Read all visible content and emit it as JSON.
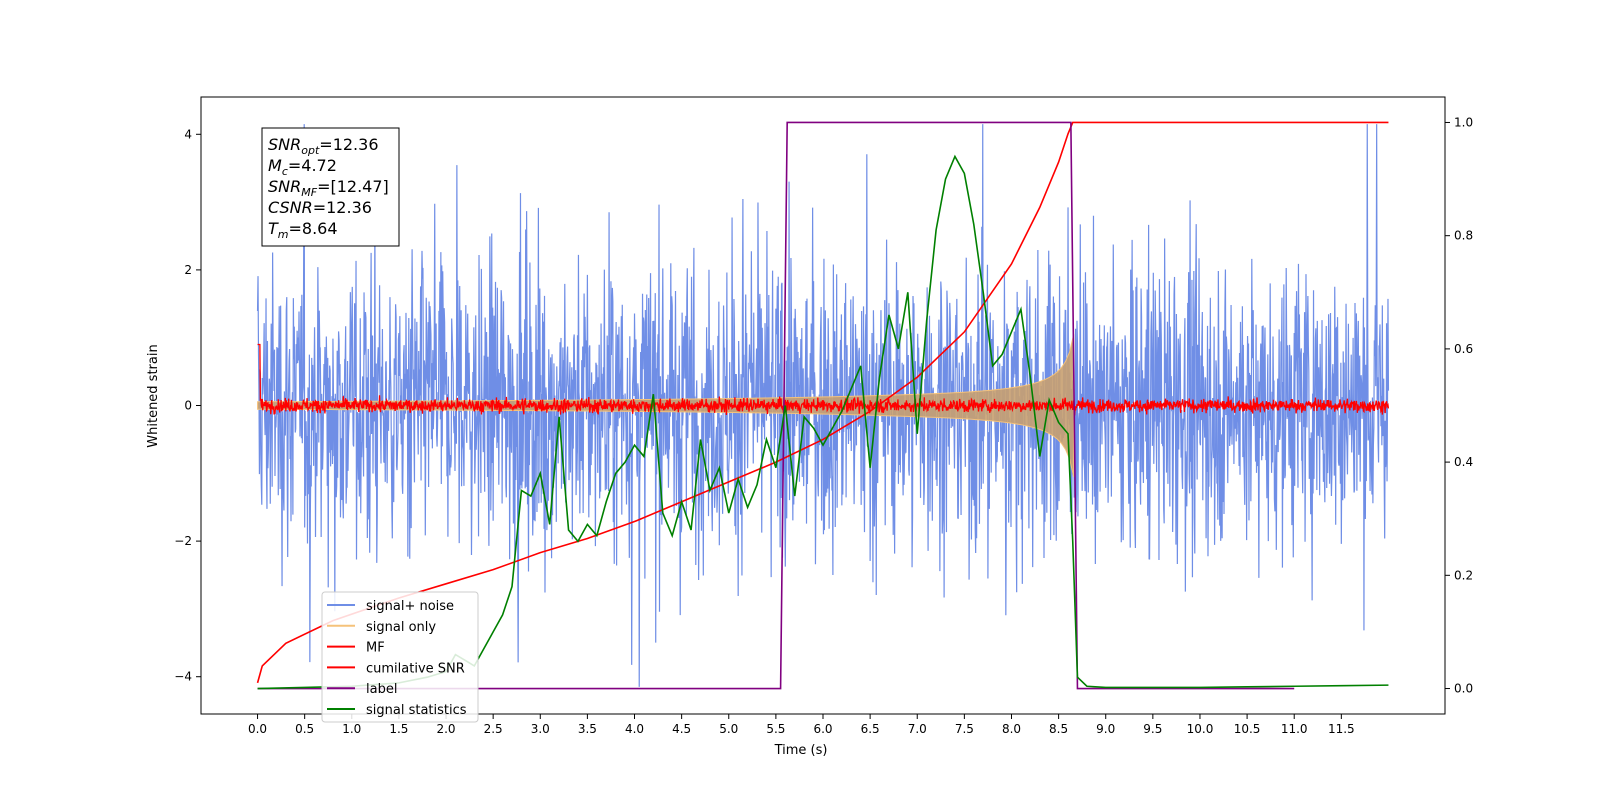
{
  "chart_data": {
    "type": "line",
    "xlabel": "Time (s)",
    "ylabel": "Whitened strain",
    "xlim": [
      -0.6,
      12.6
    ],
    "ylim": [
      -4.55,
      4.55
    ],
    "y2lim": [
      -0.045,
      1.045
    ],
    "x_ticks": [
      "0.0",
      "0.5",
      "1.0",
      "1.5",
      "2.0",
      "2.5",
      "3.0",
      "3.5",
      "4.0",
      "4.5",
      "5.0",
      "5.5",
      "6.0",
      "6.5",
      "7.0",
      "7.5",
      "8.0",
      "8.5",
      "9.0",
      "9.5",
      "10.0",
      "10.5",
      "11.0",
      "11.5"
    ],
    "y_ticks": [
      "4",
      "2",
      "0",
      "−2",
      "−4"
    ],
    "y2_ticks": [
      "1.0",
      "0.8",
      "0.6",
      "0.4",
      "0.2",
      "0.0"
    ],
    "annotation": [
      {
        "sym": "SNR",
        "sub": "opt",
        "rest": "=12.36"
      },
      {
        "sym": "M",
        "sub": "c",
        "rest": "=4.72"
      },
      {
        "sym": "SNR",
        "sub": "MF",
        "rest": "=[12.47]"
      },
      {
        "sym": "CSNR",
        "sub": "",
        "rest": "=12.36"
      },
      {
        "sym": "T",
        "sub": "m",
        "rest": "=8.64"
      }
    ],
    "legend_position": "lower-left",
    "series": [
      {
        "name": "signal+ noise",
        "color": "#6f8ee6",
        "axis": "left",
        "kind": "noise",
        "x_range": [
          0,
          12
        ],
        "noise_sd": 1.05
      },
      {
        "name": "signal only",
        "color": "#f5c27a",
        "axis": "left",
        "kind": "chirp-envelope",
        "x_range": [
          0,
          8.66
        ],
        "start_amp": 0.05,
        "end_amp": 1.05
      },
      {
        "name": "MF",
        "color": "#ff0000",
        "axis": "left",
        "kind": "noise",
        "x_range": [
          0,
          12
        ],
        "noise_sd": 0.05
      },
      {
        "name": "cumilative SNR",
        "color": "#ff0000",
        "axis": "right",
        "x": [
          0.0,
          0.05,
          0.3,
          0.8,
          1.5,
          2.0,
          2.5,
          3.0,
          3.5,
          4.0,
          4.5,
          5.0,
          5.5,
          6.0,
          6.5,
          7.0,
          7.5,
          8.0,
          8.3,
          8.5,
          8.6,
          8.65,
          12.0
        ],
        "y": [
          0.01,
          0.04,
          0.08,
          0.12,
          0.16,
          0.185,
          0.21,
          0.24,
          0.265,
          0.295,
          0.33,
          0.365,
          0.4,
          0.44,
          0.49,
          0.55,
          0.63,
          0.75,
          0.85,
          0.93,
          0.98,
          1.0,
          1.0
        ]
      },
      {
        "name": "label",
        "color": "#800080",
        "axis": "right",
        "x": [
          0.0,
          5.55,
          5.62,
          8.63,
          8.7,
          11.0
        ],
        "y": [
          0.0,
          0.0,
          1.0,
          1.0,
          0.0,
          0.0
        ]
      },
      {
        "name": "signal statistics",
        "color": "#008000",
        "axis": "right",
        "x": [
          0.0,
          0.5,
          1.0,
          1.5,
          1.8,
          2.0,
          2.1,
          2.2,
          2.3,
          2.4,
          2.5,
          2.6,
          2.7,
          2.8,
          2.9,
          3.0,
          3.1,
          3.2,
          3.3,
          3.4,
          3.5,
          3.6,
          3.7,
          3.8,
          3.9,
          4.0,
          4.1,
          4.2,
          4.3,
          4.4,
          4.5,
          4.6,
          4.7,
          4.8,
          4.9,
          5.0,
          5.1,
          5.2,
          5.3,
          5.4,
          5.5,
          5.6,
          5.7,
          5.8,
          5.9,
          6.0,
          6.1,
          6.2,
          6.3,
          6.4,
          6.5,
          6.6,
          6.7,
          6.8,
          6.9,
          7.0,
          7.1,
          7.2,
          7.3,
          7.4,
          7.5,
          7.6,
          7.7,
          7.8,
          7.9,
          8.0,
          8.1,
          8.2,
          8.3,
          8.4,
          8.5,
          8.6,
          8.65,
          8.7,
          8.8,
          9.0,
          9.5,
          10.0,
          10.5,
          11.0,
          11.5,
          12.0
        ],
        "y": [
          0.0,
          0.002,
          0.004,
          0.01,
          0.02,
          0.03,
          0.06,
          0.05,
          0.04,
          0.07,
          0.1,
          0.13,
          0.18,
          0.35,
          0.34,
          0.38,
          0.29,
          0.48,
          0.28,
          0.26,
          0.29,
          0.27,
          0.33,
          0.38,
          0.4,
          0.43,
          0.41,
          0.52,
          0.31,
          0.27,
          0.33,
          0.28,
          0.44,
          0.35,
          0.39,
          0.31,
          0.37,
          0.32,
          0.36,
          0.44,
          0.39,
          0.5,
          0.34,
          0.48,
          0.46,
          0.43,
          0.46,
          0.49,
          0.53,
          0.57,
          0.39,
          0.55,
          0.66,
          0.6,
          0.7,
          0.45,
          0.65,
          0.81,
          0.9,
          0.94,
          0.91,
          0.82,
          0.7,
          0.57,
          0.59,
          0.63,
          0.67,
          0.55,
          0.41,
          0.51,
          0.47,
          0.45,
          0.26,
          0.02,
          0.004,
          0.002,
          0.002,
          0.002,
          0.003,
          0.004,
          0.005,
          0.006
        ]
      }
    ]
  }
}
